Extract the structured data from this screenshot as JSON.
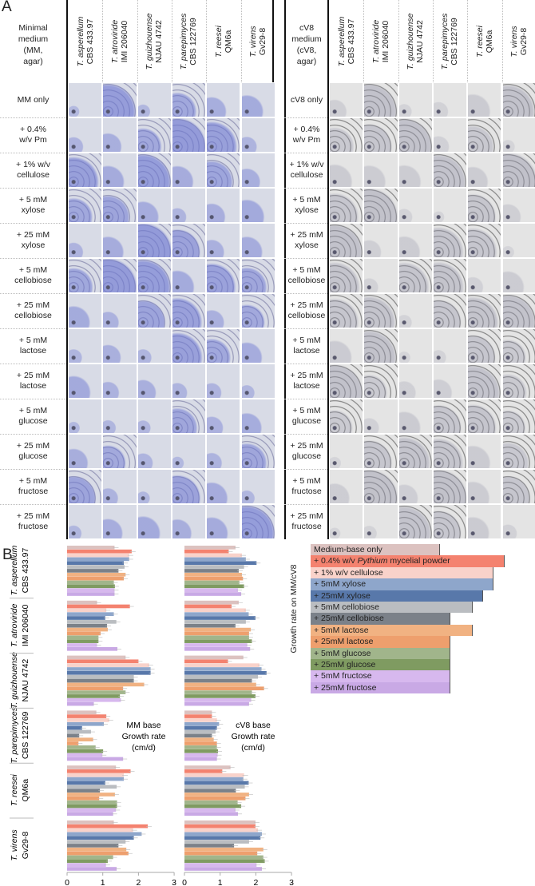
{
  "panel_a": {
    "letter": "A",
    "strains": [
      {
        "species": "T. asperellum",
        "strain": "CBS 433.97"
      },
      {
        "species": "T. atroviride",
        "strain": "IMI 206040"
      },
      {
        "species": "T. guizhouense",
        "strain": "NJAU 4742"
      },
      {
        "species": "T. parepimyces",
        "strain": "CBS 122769"
      },
      {
        "species": "T. reesei",
        "strain": "QM6a"
      },
      {
        "species": "T. virens",
        "strain": "Gv29-8"
      }
    ],
    "left": {
      "corner": "Minimal\nmedium\n(MM,\nagar)",
      "rows": [
        "MM only",
        "+ 0.4%\nw/v Pm",
        "+ 1% w/v\ncellulose",
        "+ 5 mM\nxylose",
        "+ 25 mM\nxylose",
        "+ 5 mM\ncellobiose",
        "+ 25 mM\ncellobiose",
        "+ 5 mM\nlactose",
        "+ 25 mM\nlactose",
        "+ 5 mM\nglucose",
        "+ 25 mM\nglucose",
        "+ 5 mM\nfructose",
        "+ 25 mM\nfructose"
      ]
    },
    "right": {
      "corner": "cV8\nmedium\n(cV8,\nagar)",
      "rows": [
        "cV8 only",
        "+ 0.4%\nw/v Pm",
        "+ 1% w/v\ncellulose",
        "+ 5 mM\nxylose",
        "+ 25 mM\nxylose",
        "+ 5 mM\ncellobiose",
        "+ 25 mM\ncellobiose",
        "+ 5 mM\nlactose",
        "+ 25 mM\nlactose",
        "+ 5 mM\nglucose",
        "+ 25 mM\nglucose",
        "+ 5 mM\nfructose",
        "+ 25 mM\nfructose"
      ]
    }
  },
  "panel_b": {
    "letter": "B",
    "legend": {
      "ylabel": "Growth rate on MM/cV8",
      "items": [
        {
          "label": "Medium-base only",
          "color": "#dcc2c0"
        },
        {
          "label": "+ 0.4% w/v ",
          "italic": "Pythium",
          "label_after": " mycelial powder",
          "color": "#f4826f"
        },
        {
          "label": "+ 1% w/v cellulose",
          "color": "#f9d2ca"
        },
        {
          "label": "+ 5mM xylose",
          "color": "#8ea6cb"
        },
        {
          "label": "+ 25mM xylose",
          "color": "#5878aa"
        },
        {
          "label": "+ 5mM cellobiose",
          "color": "#babdc1"
        },
        {
          "label": "+ 25mM cellobiose",
          "color": "#7b8189"
        },
        {
          "label": "+ 5mM lactose",
          "color": "#f1b282"
        },
        {
          "label": "+ 25mM lactose",
          "color": "#ee9f6d"
        },
        {
          "label": "+ 5mM glucose",
          "color": "#a1b58b"
        },
        {
          "label": "+ 25mM glucose",
          "color": "#7f9b61"
        },
        {
          "label": "+ 5mM fructose",
          "color": "#d7b8ee"
        },
        {
          "label": "+ 25mM fructose",
          "color": "#c9a9e5"
        }
      ]
    }
  },
  "chart_data": [
    {
      "type": "bar",
      "orientation": "horizontal",
      "title": "MM base Growth rate (cm/d)",
      "title_lines": [
        "MM base",
        "Growth rate",
        "(cm/d)"
      ],
      "xlim": [
        0,
        3
      ],
      "xticks": [
        "0",
        "1",
        "2",
        "3"
      ],
      "categories": [
        "Medium-base only",
        "+ 0.4% w/v Pythium mycelial powder",
        "+ 1% w/v cellulose",
        "+ 5mM xylose",
        "+ 25mM xylose",
        "+ 5mM cellobiose",
        "+ 25mM cellobiose",
        "+ 5mM lactose",
        "+ 25mM lactose",
        "+ 5mM glucose",
        "+ 25mM glucose",
        "+ 5mM fructose",
        "+ 25mM fructose"
      ],
      "series": [
        {
          "name": "T. asperellum CBS 433.97",
          "values": [
            1.33,
            1.81,
            1.74,
            1.74,
            1.59,
            1.61,
            1.44,
            1.64,
            1.59,
            1.31,
            1.34,
            1.33,
            1.33
          ]
        },
        {
          "name": "T. atroviride IMI 206040",
          "values": [
            0.84,
            1.76,
            1.1,
            1.31,
            1.07,
            1.38,
            1.12,
            1.14,
            0.94,
            0.88,
            0.88,
            0.84,
            1.41
          ]
        },
        {
          "name": "T. guizhouense NJAU 4742",
          "values": [
            1.64,
            2.0,
            2.3,
            2.34,
            2.34,
            1.87,
            1.87,
            2.16,
            1.57,
            1.64,
            1.48,
            1.51,
            0.75
          ]
        },
        {
          "name": "T. parepimyces CBS 122769",
          "values": [
            0.82,
            1.1,
            1.18,
            1.03,
            0.42,
            0.67,
            0.34,
            0.73,
            0.32,
            0.8,
            1.01,
            0.99,
            1.57
          ]
        },
        {
          "name": "T. reesei QM6a",
          "values": [
            1.37,
            1.78,
            1.59,
            1.59,
            1.07,
            1.39,
            0.92,
            1.34,
            0.9,
            1.4,
            1.4,
            1.37,
            1.29
          ]
        },
        {
          "name": "T. virens Gv29-8",
          "values": [
            1.31,
            2.26,
            1.85,
            2.09,
            1.87,
            1.64,
            1.44,
            1.66,
            1.72,
            1.29,
            1.14,
            1.09,
            1.39
          ]
        }
      ]
    },
    {
      "type": "bar",
      "orientation": "horizontal",
      "title": "cV8 base Growth rate (cm/d)",
      "title_lines": [
        "cV8 base",
        "Growth rate",
        "(cm/d)"
      ],
      "xlim": [
        0,
        3
      ],
      "xticks": [
        "0",
        "1",
        "2",
        "3"
      ],
      "categories": [
        "Medium-base only",
        "+ 0.4% w/v Pythium mycelial powder",
        "+ 1% w/v cellulose",
        "+ 5mM xylose",
        "+ 25mM xylose",
        "+ 5mM cellobiose",
        "+ 25mM cellobiose",
        "+ 5mM lactose",
        "+ 25mM lactose",
        "+ 5mM glucose",
        "+ 25mM glucose",
        "+ 5mM fructose",
        "+ 25mM fructose"
      ],
      "series": [
        {
          "name": "T. asperellum CBS 433.97",
          "values": [
            1.43,
            1.24,
            1.61,
            1.72,
            2.02,
            1.67,
            1.52,
            1.61,
            1.64,
            1.54,
            1.67,
            1.5,
            1.59
          ]
        },
        {
          "name": "T. atroviride IMI 206040",
          "values": [
            1.52,
            1.32,
            1.72,
            1.8,
            1.99,
            1.72,
            1.43,
            1.86,
            1.81,
            1.81,
            1.89,
            1.76,
            1.84
          ]
        },
        {
          "name": "T. guizhouense NJAU 4742",
          "values": [
            1.65,
            1.22,
            2.1,
            2.16,
            2.3,
            2.06,
            1.89,
            2.01,
            2.23,
            1.89,
            1.99,
            1.87,
            1.81
          ]
        },
        {
          "name": "T. parepimyces CBS 122769",
          "values": [
            0.77,
            0.77,
            0.91,
            0.97,
            0.91,
            0.87,
            0.77,
            0.82,
            0.91,
            0.91,
            0.94,
            0.93,
            0.91
          ]
        },
        {
          "name": "T. reesei QM6a",
          "values": [
            1.29,
            1.06,
            1.67,
            1.65,
            1.8,
            1.69,
            1.44,
            1.81,
            1.71,
            1.49,
            1.59,
            1.43,
            1.5
          ]
        },
        {
          "name": "T. virens Gv29-8",
          "values": [
            1.99,
            1.99,
            2.06,
            2.17,
            2.13,
            1.81,
            1.39,
            2.21,
            2.04,
            2.21,
            2.25,
            2.02,
            2.17
          ]
        }
      ]
    }
  ]
}
